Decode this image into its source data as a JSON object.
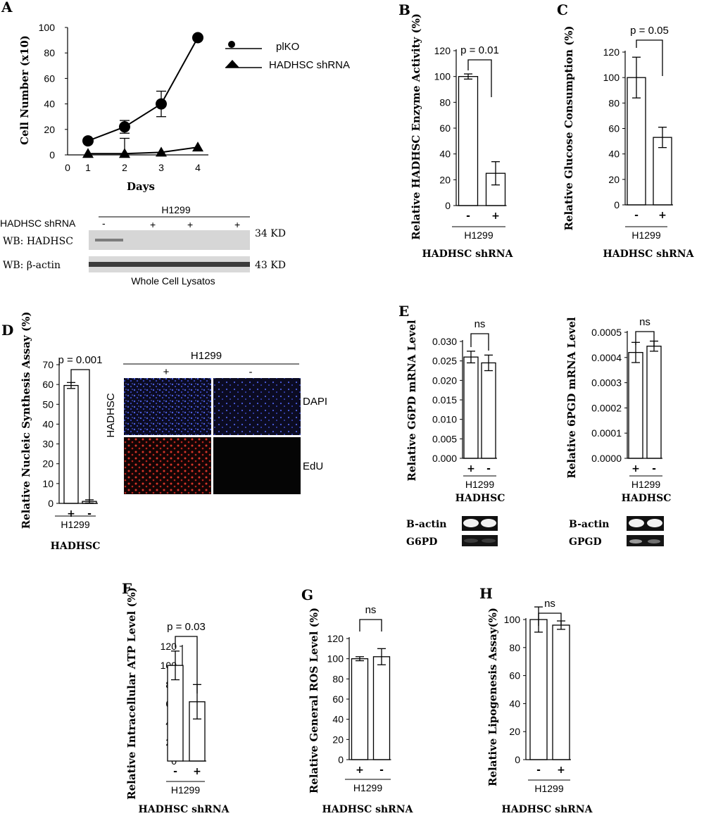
{
  "panels": {
    "A": {
      "letter": "A",
      "chart_data": {
        "type": "line",
        "x": [
          1,
          2,
          3,
          4
        ],
        "series": [
          {
            "name": "plKO",
            "values": [
              11,
              22,
              40,
              92
            ],
            "err": [
              0,
              5,
              10,
              0
            ]
          },
          {
            "name": "HADHSC shRNA",
            "values": [
              1,
              1,
              2,
              6
            ],
            "err": [
              0,
              12,
              0,
              0
            ]
          }
        ],
        "xlabel": "Days",
        "ylabel": "Cell Number (x10)",
        "ylim": [
          0,
          100
        ],
        "xticks": [
          "0",
          "1",
          "2",
          "3",
          "4"
        ],
        "yticks": [
          "0",
          "20",
          "40",
          "60",
          "80",
          "100"
        ]
      },
      "blot": {
        "cell_line": "H1299",
        "row_header": "HADHSC shRNA",
        "lanes": [
          "-",
          "+",
          "+",
          "+"
        ],
        "rows": [
          {
            "label": "WB: HADHSC",
            "size": "34 KD"
          },
          {
            "label": "WB: β-actin",
            "size": "43 KD"
          }
        ],
        "caption": "Whole Cell Lysatos"
      }
    },
    "B": {
      "letter": "B",
      "chart_data": {
        "type": "bar",
        "categories": [
          "-",
          "+"
        ],
        "values": [
          100,
          25
        ],
        "err": [
          2,
          9
        ],
        "ylabel": "Relative HADHSC Enzyme Activity (%)",
        "ylim": [
          0,
          120
        ],
        "yticks": [
          "0",
          "20",
          "40",
          "60",
          "80",
          "100",
          "120"
        ],
        "annotation": "p = 0.01",
        "group": "H1299",
        "xlabel": "HADHSC shRNA"
      }
    },
    "C": {
      "letter": "C",
      "chart_data": {
        "type": "bar",
        "categories": [
          "-",
          "+"
        ],
        "values": [
          100,
          53
        ],
        "err": [
          16,
          8
        ],
        "ylabel": "Relative Glucose Consumption (%)",
        "ylim": [
          0,
          120
        ],
        "yticks": [
          "0",
          "20",
          "40",
          "60",
          "80",
          "100",
          "120"
        ],
        "annotation": "p = 0.05",
        "group": "H1299",
        "xlabel": "HADHSC shRNA"
      }
    },
    "D": {
      "letter": "D",
      "chart_data": {
        "type": "bar",
        "categories": [
          "+",
          "-"
        ],
        "values": [
          59.5,
          1
        ],
        "err": [
          1.5,
          0.8
        ],
        "ylabel": "Relative Nucleic Synthesis Assay (%)",
        "ylim": [
          0,
          70
        ],
        "yticks": [
          "0",
          "10",
          "20",
          "30",
          "40",
          "50",
          "60",
          "70"
        ],
        "annotation": "p = 0.001",
        "group": "H1299",
        "xlabel": "HADHSC"
      },
      "micro": {
        "cell_line": "H1299",
        "columns": [
          "+",
          "-"
        ],
        "row_group": "HADHSC",
        "rows": [
          "DAPI",
          "EdU"
        ]
      }
    },
    "E": {
      "letter": "E",
      "charts": [
        {
          "chart_data": {
            "type": "bar",
            "categories": [
              "+",
              "-"
            ],
            "values": [
              0.026,
              0.0245
            ],
            "err": [
              0.0015,
              0.002
            ],
            "ylabel": "Relative G6PD mRNA Level",
            "ylim": [
              0,
              0.03
            ],
            "yticks": [
              "0.000",
              "0.005",
              "0.010",
              "0.015",
              "0.020",
              "0.025",
              "0.030"
            ],
            "annotation": "ns",
            "group": "H1299",
            "xlabel": "HADHSC"
          },
          "gel": {
            "rows": [
              "B-actin",
              "G6PD"
            ]
          }
        },
        {
          "chart_data": {
            "type": "bar",
            "categories": [
              "+",
              "-"
            ],
            "values": [
              0.00042,
              0.000445
            ],
            "err": [
              4e-05,
              2e-05
            ],
            "ylabel": "Relative 6PGD mRNA Level",
            "ylim": [
              0,
              0.0005
            ],
            "yticks": [
              "0.0000",
              "0.0001",
              "0.0002",
              "0.0003",
              "0.0004",
              "0.0005"
            ],
            "annotation": "ns",
            "group": "H1299",
            "xlabel": "HADHSC"
          },
          "gel": {
            "rows": [
              "B-actin",
              "GPGD"
            ]
          }
        }
      ]
    },
    "F": {
      "letter": "F",
      "chart_data": {
        "type": "bar",
        "categories": [
          "-",
          "+"
        ],
        "values": [
          100,
          62
        ],
        "err": [
          15,
          18
        ],
        "ylabel": "Relative Intracellular ATP Level (%)",
        "ylim": [
          0,
          120
        ],
        "yticks": [
          "0",
          "20",
          "40",
          "60",
          "80",
          "100",
          "120"
        ],
        "annotation": "p = 0.03",
        "group": "H1299",
        "xlabel": "HADHSC shRNA"
      }
    },
    "G": {
      "letter": "G",
      "chart_data": {
        "type": "bar",
        "categories": [
          "+",
          "-"
        ],
        "values": [
          100,
          102
        ],
        "err": [
          2,
          8
        ],
        "ylabel": "Relative General ROS Level (%)",
        "ylim": [
          0,
          120
        ],
        "yticks": [
          "0",
          "20",
          "40",
          "60",
          "80",
          "100",
          "120"
        ],
        "annotation": "ns",
        "group": "H1299",
        "xlabel": "HADHSC shRNA"
      }
    },
    "H": {
      "letter": "H",
      "chart_data": {
        "type": "bar",
        "categories": [
          "-",
          "+"
        ],
        "values": [
          100,
          96
        ],
        "err": [
          9,
          3
        ],
        "ylabel": "Relative Lipogenesis Assay(%)",
        "ylim": [
          0,
          100
        ],
        "yticks": [
          "0",
          "20",
          "40",
          "60",
          "80",
          "100"
        ],
        "annotation": "ns",
        "group": "H1299",
        "xlabel": "HADHSC shRNA"
      }
    }
  },
  "colors": {
    "ink": "#000000",
    "dapi": "#2a37b0",
    "edu": "#c0261c",
    "band": "#cfcfcf"
  }
}
